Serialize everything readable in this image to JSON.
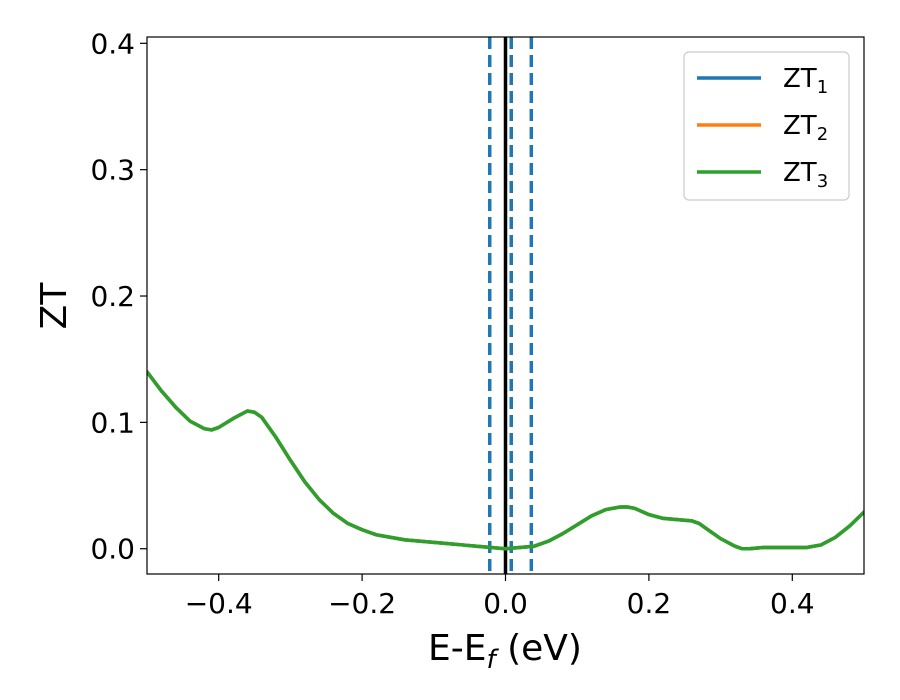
{
  "chart_data": {
    "type": "line",
    "xlabel": "E-E",
    "xlabel_sub": "f",
    "xlabel_unit": " (eV)",
    "ylabel": "ZT",
    "xlim": [
      -0.5,
      0.5
    ],
    "ylim": [
      -0.02,
      0.405
    ],
    "xticks": [
      -0.4,
      -0.2,
      0.0,
      0.2,
      0.4
    ],
    "xtick_labels": [
      "−0.4",
      "−0.2",
      "0.0",
      "0.2",
      "0.4"
    ],
    "yticks": [
      0.0,
      0.1,
      0.2,
      0.3,
      0.4
    ],
    "ytick_labels": [
      "0.0",
      "0.1",
      "0.2",
      "0.3",
      "0.4"
    ],
    "grid": false,
    "legend_position": "top-right",
    "vlines": [
      {
        "x": 0.0,
        "color": "#000000",
        "style": "solid"
      },
      {
        "x": -0.022,
        "color": "#1f77b4",
        "style": "dashed"
      },
      {
        "x": 0.008,
        "color": "#1f77b4",
        "style": "dashed"
      },
      {
        "x": 0.036,
        "color": "#1f77b4",
        "style": "dashed"
      }
    ],
    "x": [
      -0.5,
      -0.48,
      -0.46,
      -0.44,
      -0.42,
      -0.41,
      -0.4,
      -0.38,
      -0.36,
      -0.35,
      -0.34,
      -0.32,
      -0.3,
      -0.28,
      -0.26,
      -0.24,
      -0.22,
      -0.2,
      -0.18,
      -0.16,
      -0.14,
      -0.12,
      -0.1,
      -0.08,
      -0.06,
      -0.04,
      -0.02,
      0.0,
      0.02,
      0.04,
      0.06,
      0.08,
      0.1,
      0.12,
      0.14,
      0.16,
      0.17,
      0.18,
      0.2,
      0.22,
      0.24,
      0.26,
      0.27,
      0.28,
      0.3,
      0.32,
      0.33,
      0.34,
      0.36,
      0.38,
      0.4,
      0.42,
      0.44,
      0.46,
      0.48,
      0.5
    ],
    "series": [
      {
        "name": "ZT",
        "name_sub": "1",
        "color": "#1f77b4",
        "values": [
          0.14,
          0.125,
          0.112,
          0.101,
          0.095,
          0.094,
          0.096,
          0.103,
          0.109,
          0.108,
          0.104,
          0.088,
          0.07,
          0.053,
          0.039,
          0.028,
          0.02,
          0.015,
          0.011,
          0.009,
          0.007,
          0.006,
          0.005,
          0.004,
          0.003,
          0.002,
          0.001,
          0.0,
          0.001,
          0.002,
          0.006,
          0.012,
          0.019,
          0.026,
          0.031,
          0.033,
          0.033,
          0.032,
          0.027,
          0.024,
          0.023,
          0.022,
          0.02,
          0.016,
          0.008,
          0.002,
          0.0,
          0.0,
          0.001,
          0.001,
          0.001,
          0.001,
          0.003,
          0.009,
          0.018,
          0.029
        ]
      },
      {
        "name": "ZT",
        "name_sub": "2",
        "color": "#ff7f0e",
        "values": [
          0.14,
          0.125,
          0.112,
          0.101,
          0.095,
          0.094,
          0.096,
          0.103,
          0.109,
          0.108,
          0.104,
          0.088,
          0.07,
          0.053,
          0.039,
          0.028,
          0.02,
          0.015,
          0.011,
          0.009,
          0.007,
          0.006,
          0.005,
          0.004,
          0.003,
          0.002,
          0.001,
          0.0,
          0.001,
          0.002,
          0.006,
          0.012,
          0.019,
          0.026,
          0.031,
          0.033,
          0.033,
          0.032,
          0.027,
          0.024,
          0.023,
          0.022,
          0.02,
          0.016,
          0.008,
          0.002,
          0.0,
          0.0,
          0.001,
          0.001,
          0.001,
          0.001,
          0.003,
          0.009,
          0.018,
          0.029
        ]
      },
      {
        "name": "ZT",
        "name_sub": "3",
        "color": "#2ca02c",
        "values": [
          0.14,
          0.125,
          0.112,
          0.101,
          0.095,
          0.094,
          0.096,
          0.103,
          0.109,
          0.108,
          0.104,
          0.088,
          0.07,
          0.053,
          0.039,
          0.028,
          0.02,
          0.015,
          0.011,
          0.009,
          0.007,
          0.006,
          0.005,
          0.004,
          0.003,
          0.002,
          0.001,
          0.0,
          0.001,
          0.002,
          0.006,
          0.012,
          0.019,
          0.026,
          0.031,
          0.033,
          0.033,
          0.032,
          0.027,
          0.024,
          0.023,
          0.022,
          0.02,
          0.016,
          0.008,
          0.002,
          0.0,
          0.0,
          0.001,
          0.001,
          0.001,
          0.001,
          0.003,
          0.009,
          0.018,
          0.029
        ]
      }
    ]
  }
}
